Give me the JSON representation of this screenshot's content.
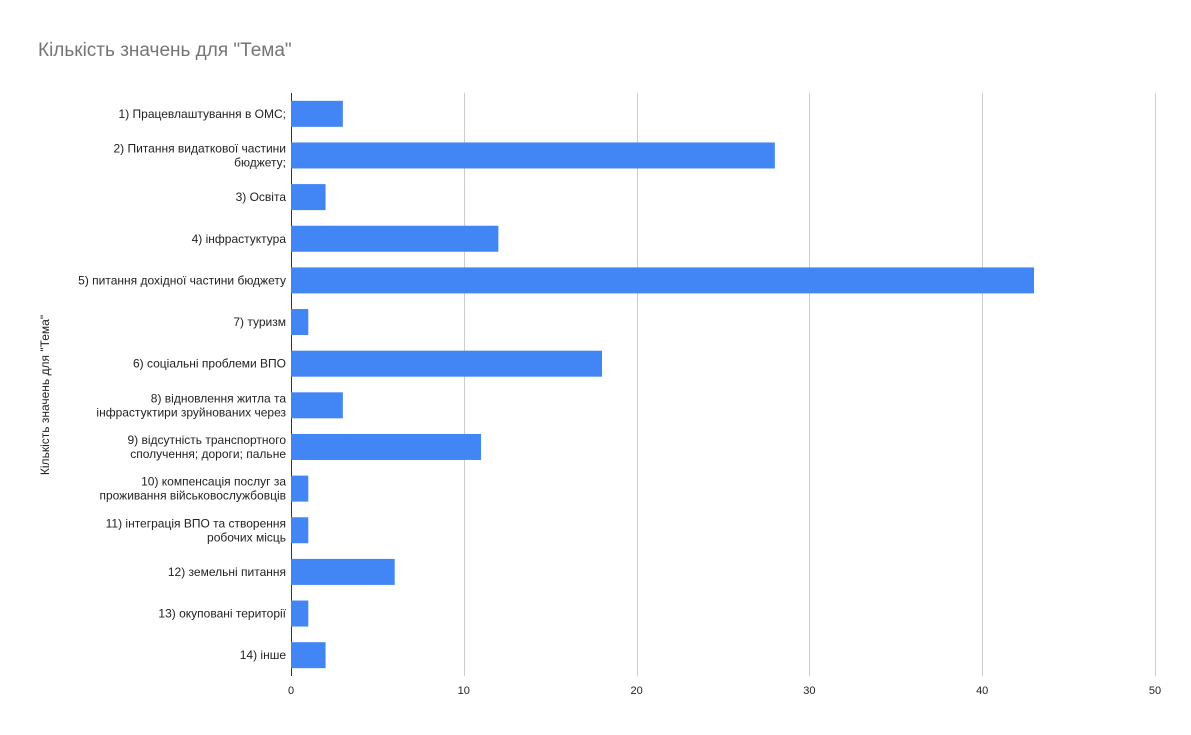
{
  "chart_data": {
    "type": "bar",
    "orientation": "horizontal",
    "title": "Кількість значень для \"Тема\"",
    "ylabel": "Кількість значень для \"Тема\"",
    "xlabel": "",
    "xlim": [
      0,
      50
    ],
    "xticks": [
      0,
      10,
      20,
      30,
      40,
      50
    ],
    "grid": true,
    "bar_color": "#4285f4",
    "title_color": "#757575",
    "categories": [
      [
        "1) Працевлаштування в ОМС;"
      ],
      [
        "2) Питання видаткової частини",
        "бюджету;"
      ],
      [
        "3) Освіта"
      ],
      [
        "4) інфрастуктура"
      ],
      [
        "5) питання дохідної частини бюджету"
      ],
      [
        "7) туризм"
      ],
      [
        "6) соціальні проблеми ВПО"
      ],
      [
        "8) відновлення житла та",
        "інфрастуктири зруйнованих через"
      ],
      [
        "9) відсутність транспортного",
        "сполучення; дороги; пальне"
      ],
      [
        "10) компенсація послуг за",
        "проживання військовослужбовців"
      ],
      [
        "11) інтеграція ВПО та створення",
        "робочих місць"
      ],
      [
        "12) земельні питання"
      ],
      [
        "13) окуповані території"
      ],
      [
        "14) інше"
      ]
    ],
    "values": [
      3,
      28,
      2,
      12,
      43,
      1,
      18,
      3,
      11,
      1,
      1,
      6,
      1,
      2
    ]
  }
}
